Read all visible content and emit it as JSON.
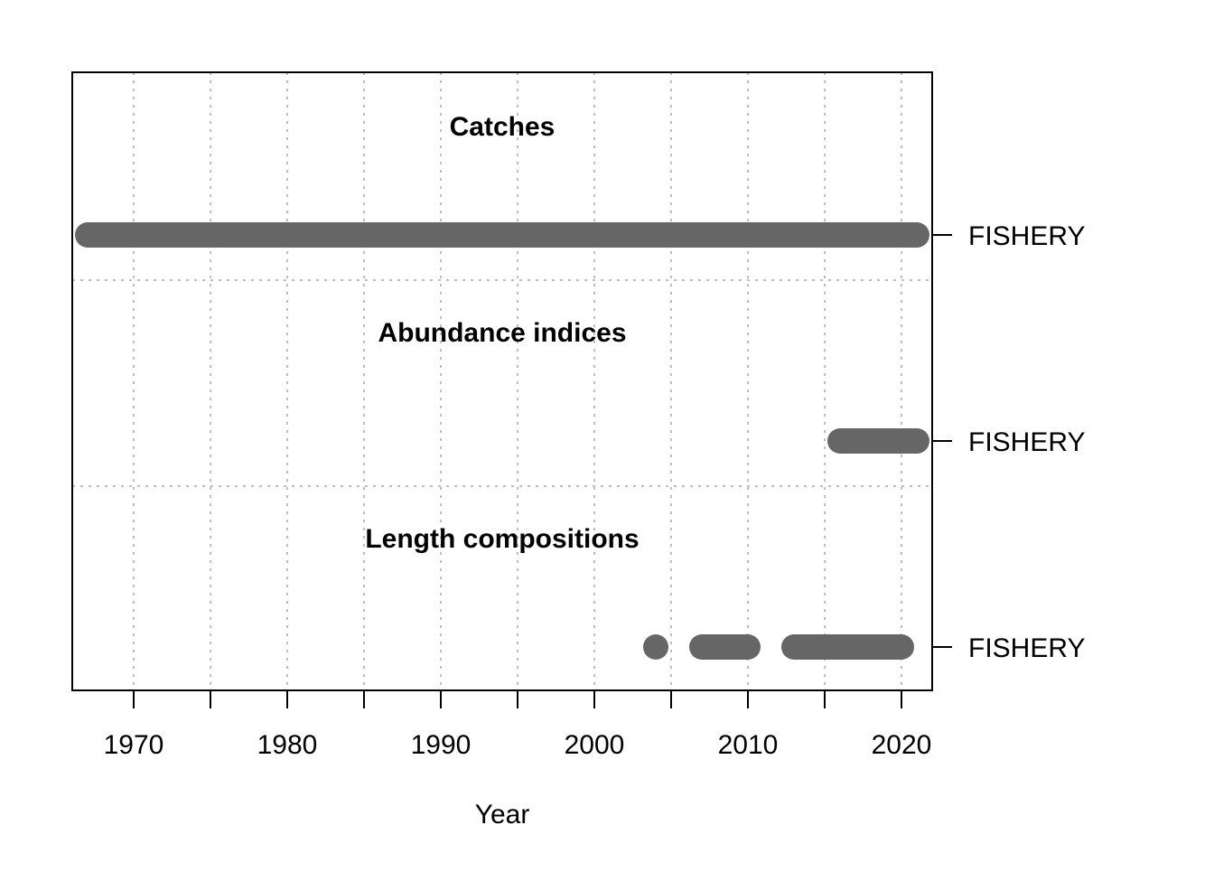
{
  "chart_data": {
    "type": "timeline",
    "xlabel": "Year",
    "xlim": [
      1966,
      2022
    ],
    "x_ticks_major": [
      1970,
      1980,
      1990,
      2000,
      2010,
      2020
    ],
    "x_ticks_minor": [
      1975,
      1985,
      1995,
      2005,
      2015
    ],
    "x_tick_labels": [
      "1970",
      "1980",
      "1990",
      "2000",
      "2010",
      "2020"
    ],
    "grid": true,
    "panels": [
      {
        "title": "Catches",
        "series": [
          {
            "name": "FISHERY",
            "segments": [
              [
                1967,
                2021
              ]
            ]
          }
        ]
      },
      {
        "title": "Abundance indices",
        "series": [
          {
            "name": "FISHERY",
            "segments": [
              [
                2016,
                2021
              ]
            ]
          }
        ]
      },
      {
        "title": "Length compositions",
        "series": [
          {
            "name": "FISHERY",
            "segments": [
              [
                2004,
                2004
              ],
              [
                2007,
                2010
              ],
              [
                2013,
                2020
              ]
            ]
          }
        ]
      }
    ],
    "colors": {
      "bar": "#666666",
      "grid": "#bebebe",
      "axis": "#000000"
    }
  }
}
